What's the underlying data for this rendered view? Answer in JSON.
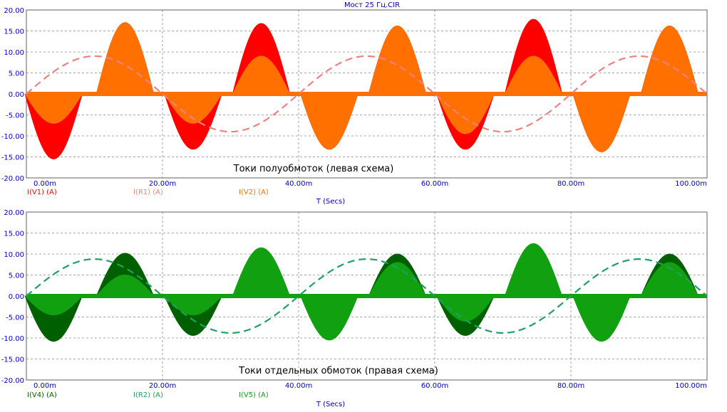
{
  "window": {
    "title": "Мост 25 Гц.CIR"
  },
  "chart_data": [
    {
      "type": "line",
      "annotation": "Токи полуобмоток (левая схема)",
      "xlabel": "T (Secs)",
      "ylabel": "",
      "xlim": [
        0,
        100
      ],
      "x_unit": "m",
      "ylim": [
        -20,
        20
      ],
      "grid": true,
      "x_ticks": [
        "0.00m",
        "20.00m",
        "40.00m",
        "60.00m",
        "80.00m",
        "100.00m"
      ],
      "y_ticks": [
        "20.00",
        "15.00",
        "10.00",
        "5.00",
        "0.00",
        "-5.00",
        "-10.00",
        "-15.00",
        "-20.00"
      ],
      "series": [
        {
          "name": "I(V1) (A)",
          "color": "#ff0000",
          "style": "filled-pulses",
          "pulses": [
            {
              "t": 4,
              "value": -15.5
            },
            {
              "t": 14.5,
              "value": 17
            },
            {
              "t": 24.5,
              "value": -13.2
            },
            {
              "t": 34.5,
              "value": 16.8
            },
            {
              "t": 44.5,
              "value": -13.2
            },
            {
              "t": 54.5,
              "value": 16.2
            },
            {
              "t": 64.5,
              "value": -13.2
            },
            {
              "t": 74.5,
              "value": 17.8
            },
            {
              "t": 84.5,
              "value": -13.8
            },
            {
              "t": 94.5,
              "value": 16.2
            }
          ]
        },
        {
          "name": "I(R1) (A)",
          "color": "#f08080",
          "style": "dashed-sine",
          "amplitude": 9,
          "period": 40,
          "phase_ms": 0
        },
        {
          "name": "I(V2) (A)",
          "color": "#ff7000",
          "style": "filled-pulses",
          "pulses": [
            {
              "t": 4,
              "value": -7
            },
            {
              "t": 14.5,
              "value": 17
            },
            {
              "t": 24.5,
              "value": -7
            },
            {
              "t": 34.5,
              "value": 9
            },
            {
              "t": 44.5,
              "value": -13.2
            },
            {
              "t": 54.5,
              "value": 16.2
            },
            {
              "t": 64.5,
              "value": -9.5
            },
            {
              "t": 74.5,
              "value": 9
            },
            {
              "t": 84.5,
              "value": -13.8
            },
            {
              "t": 94.5,
              "value": 16.2
            }
          ]
        }
      ]
    },
    {
      "type": "line",
      "annotation": "Токи отдельных обмоток (правая схема)",
      "xlabel": "T (Secs)",
      "ylabel": "",
      "xlim": [
        0,
        100
      ],
      "x_unit": "m",
      "ylim": [
        -20,
        20
      ],
      "grid": true,
      "x_ticks": [
        "0.00m",
        "20.00m",
        "40.00m",
        "60.00m",
        "80.00m",
        "100.00m"
      ],
      "y_ticks": [
        "20.00",
        "15.00",
        "10.00",
        "5.00",
        "0.00",
        "-5.00",
        "-10.00",
        "-15.00",
        "-20.00"
      ],
      "series": [
        {
          "name": "I(V4) (A)",
          "color": "#006000",
          "style": "filled-pulses",
          "pulses": [
            {
              "t": 4,
              "value": -10.8
            },
            {
              "t": 14.5,
              "value": 10.2
            },
            {
              "t": 24.5,
              "value": -9.4
            },
            {
              "t": 34.5,
              "value": 0
            },
            {
              "t": 44.5,
              "value": 0
            },
            {
              "t": 54.5,
              "value": 10
            },
            {
              "t": 64.5,
              "value": -9.4
            },
            {
              "t": 74.5,
              "value": 0
            },
            {
              "t": 84.5,
              "value": 0
            },
            {
              "t": 94.5,
              "value": 10
            }
          ]
        },
        {
          "name": "I(R2) (A)",
          "color": "#20a060",
          "style": "dashed-sine",
          "amplitude": 8.8,
          "period": 40,
          "phase_ms": 0
        },
        {
          "name": "I(V5) (A)",
          "color": "#10a010",
          "style": "filled-pulses",
          "pulses": [
            {
              "t": 4,
              "value": -4.5
            },
            {
              "t": 14.5,
              "value": 5
            },
            {
              "t": 24.5,
              "value": -4.5
            },
            {
              "t": 34.5,
              "value": 11.5
            },
            {
              "t": 44.5,
              "value": -10.5
            },
            {
              "t": 54.5,
              "value": 8
            },
            {
              "t": 64.5,
              "value": -6
            },
            {
              "t": 74.5,
              "value": 12.5
            },
            {
              "t": 84.5,
              "value": -10.8
            },
            {
              "t": 94.5,
              "value": 8
            }
          ]
        }
      ]
    }
  ]
}
